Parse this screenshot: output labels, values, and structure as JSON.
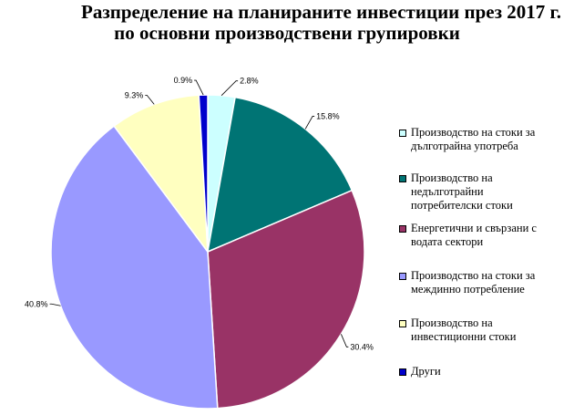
{
  "title_line1": "Разпределение на планираните инвестиции през 2017 г.",
  "title_line2": "по основни производствени групировки",
  "chart_data": {
    "type": "pie",
    "title": "Разпределение на планираните инвестиции през 2017 г. по основни производствени групировки",
    "start_angle_deg": 0,
    "direction": "clockwise",
    "legend_position": "right",
    "slices": [
      {
        "name": "Производство на стоки за дълготрайна употреба",
        "value": 2.8,
        "label": "2.8%",
        "color": "#ccffff"
      },
      {
        "name": "Производство на недълготрайни потребителски стоки",
        "value": 15.8,
        "label": "15.8%",
        "color": "#007474"
      },
      {
        "name": "Енергетични и свързани с водата сектори",
        "value": 30.4,
        "label": "30.4%",
        "color": "#993366"
      },
      {
        "name": "Производство на стоки за междинно потребление",
        "value": 40.8,
        "label": "40.8%",
        "color": "#9999ff"
      },
      {
        "name": "Производство на инвестиционни стоки",
        "value": 9.3,
        "label": "9.3%",
        "color": "#ffffc0"
      },
      {
        "name": "Други",
        "value": 0.9,
        "label": "0.9%",
        "color": "#0000cc"
      }
    ]
  },
  "legend": [
    {
      "lines": [
        "Производство на стоки за",
        "дълготрайна употреба"
      ],
      "color": "#ccffff"
    },
    {
      "lines": [
        "Производство на",
        "недълготрайни",
        "потребителски стоки"
      ],
      "color": "#007474"
    },
    {
      "lines": [
        "Енергетични и свързани с",
        "водата сектори"
      ],
      "color": "#993366"
    },
    {
      "lines": [
        "Производство на стоки за",
        "междинно потребление"
      ],
      "color": "#9999ff"
    },
    {
      "lines": [
        "Производство на",
        "инвестиционни стоки"
      ],
      "color": "#ffffc0"
    },
    {
      "lines": [
        "Други"
      ],
      "color": "#0000cc"
    }
  ]
}
